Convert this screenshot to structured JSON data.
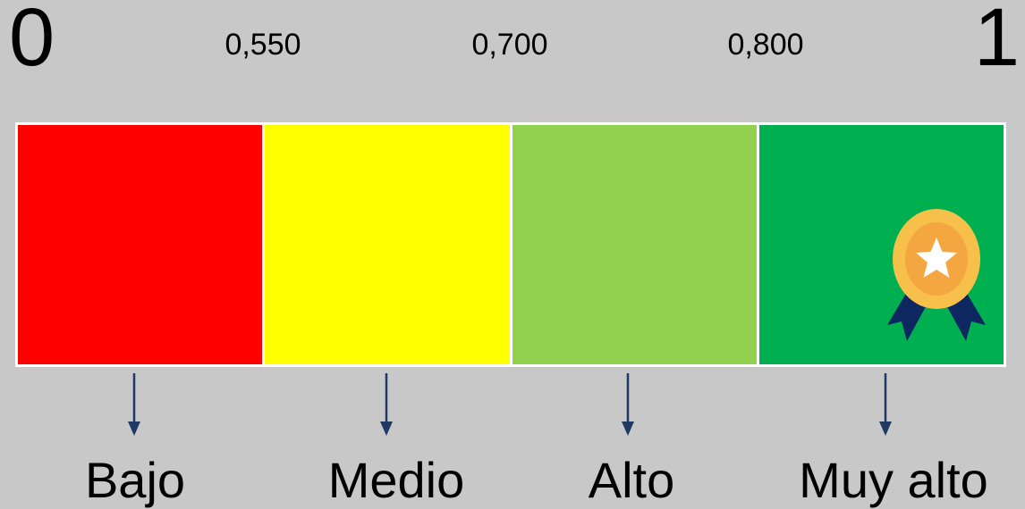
{
  "scale": {
    "min_label": "0",
    "max_label": "1",
    "thresholds": [
      "0,550",
      "0,700",
      "0,800"
    ]
  },
  "levels": [
    {
      "label": "Bajo",
      "color": "#ff0000"
    },
    {
      "label": "Medio",
      "color": "#ffff00"
    },
    {
      "label": "Alto",
      "color": "#92d050"
    },
    {
      "label": "Muy alto",
      "color": "#00b050"
    }
  ],
  "colors": {
    "arrow": "#1f3864",
    "medal_outer": "#f7c04a",
    "medal_inner": "#f4a640",
    "ribbon": "#0d2860",
    "background": "#c8c8c8"
  },
  "icons": {
    "top_level_badge": "medal-icon"
  }
}
